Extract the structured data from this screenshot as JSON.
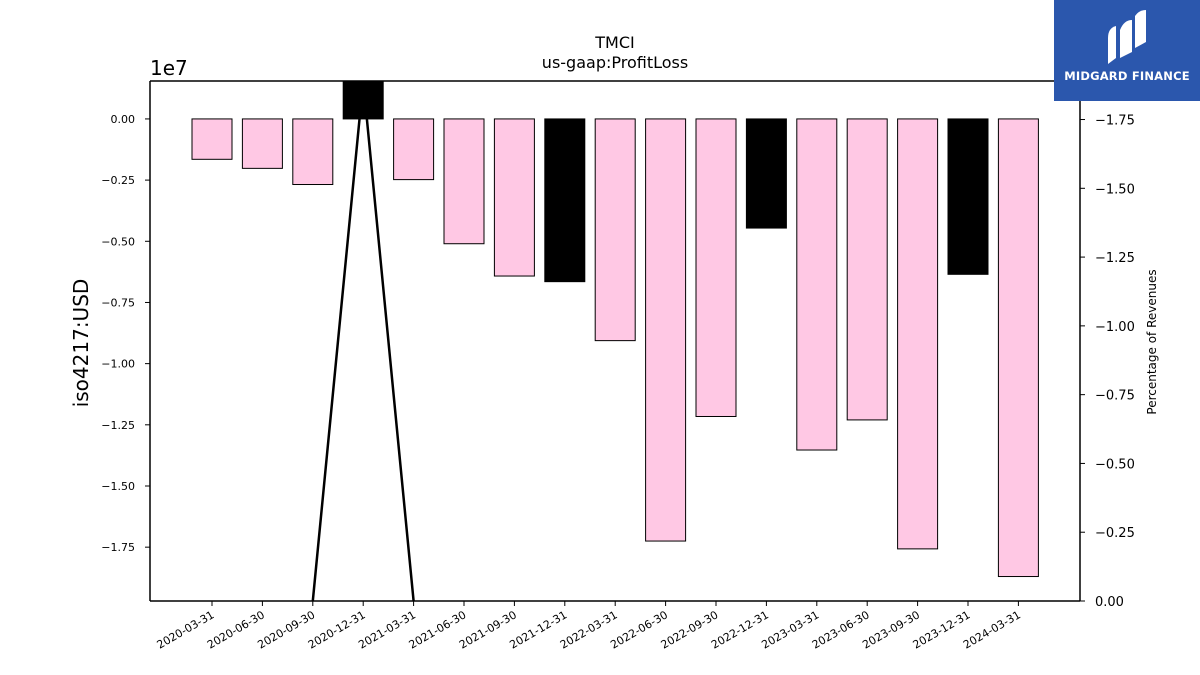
{
  "chart_data": {
    "type": "bar",
    "title": "TMCI",
    "subtitle": "us-gaap:ProfitLoss",
    "ylabel": "iso4217:USD",
    "y_offset_label": "1e7",
    "y2label": "Percentage of Revenues",
    "categories": [
      "2020-03-31",
      "2020-06-30",
      "2020-09-30",
      "2020-12-31",
      "2021-03-31",
      "2021-06-30",
      "2021-09-30",
      "2021-12-31",
      "2022-03-31",
      "2022-06-30",
      "2022-09-30",
      "2022-12-31",
      "2023-03-31",
      "2023-06-30",
      "2023-09-30",
      "2023-12-31",
      "2024-03-31"
    ],
    "values": [
      -1650000,
      -2020000,
      -2680000,
      1530000,
      -2480000,
      -5100000,
      -6420000,
      -6650000,
      -9060000,
      -17250000,
      -12160000,
      -4460000,
      -13530000,
      -12300000,
      -17570000,
      -6350000,
      -18700000
    ],
    "bar_colors": [
      "#ffc8e4",
      "#ffc8e4",
      "#ffc8e4",
      "#000000",
      "#ffc8e4",
      "#ffc8e4",
      "#ffc8e4",
      "#000000",
      "#ffc8e4",
      "#ffc8e4",
      "#ffc8e4",
      "#000000",
      "#ffc8e4",
      "#ffc8e4",
      "#ffc8e4",
      "#000000",
      "#ffc8e4"
    ],
    "ylim": [
      -19700000,
      1550000
    ],
    "yticks": [
      0,
      -2500000,
      -5000000,
      -7500000,
      -10000000,
      -12500000,
      -15000000,
      -17500000
    ],
    "ytick_labels": [
      "0.00",
      "−0.25",
      "−0.50",
      "−0.75",
      "−1.00",
      "−1.25",
      "−1.50",
      "−1.75"
    ],
    "y2lim": [
      0,
      -1.89
    ],
    "y2ticks": [
      -1.75,
      -1.5,
      -1.25,
      -1.0,
      -0.75,
      -0.5,
      -0.25,
      0.0
    ],
    "y2tick_labels": [
      "−1.75",
      "−1.50",
      "−1.25",
      "−1.00",
      "−0.75",
      "−0.50",
      "−0.25",
      "0.00"
    ],
    "pct_line": [
      {
        "category": "2020-09-30",
        "value": 0.0
      },
      {
        "category": "2020-12-31",
        "value": -1.89
      },
      {
        "category": "2021-03-31",
        "value": 0.0
      }
    ],
    "grid": false,
    "legend": "none"
  },
  "logo": {
    "text": "MIDGARD FINANCE",
    "bg_color": "#2b57ad",
    "icon": "midgard-finance-logo-icon"
  }
}
